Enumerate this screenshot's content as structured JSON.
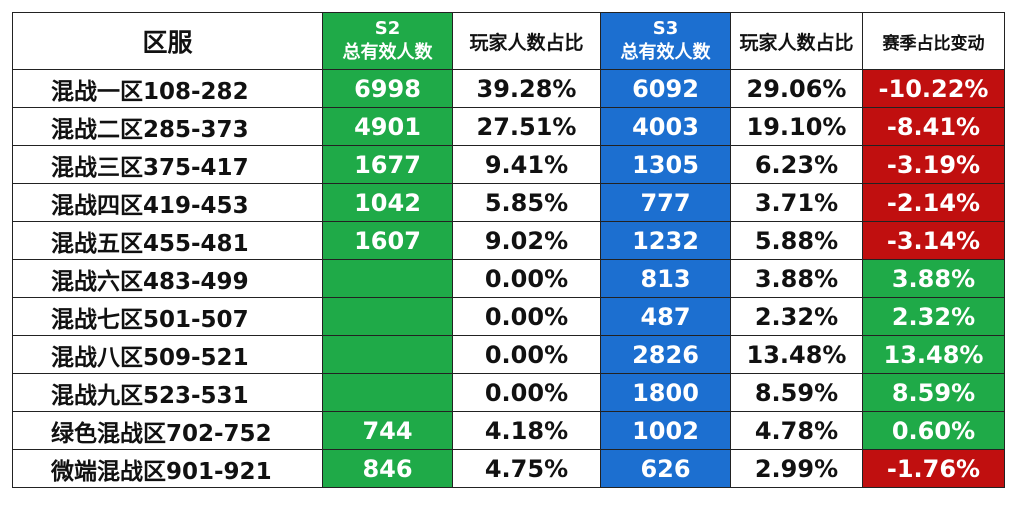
{
  "headers": {
    "region": "区服",
    "s2_line1": "S2",
    "s2_line2": "总有效人数",
    "s2_ratio": "玩家人数占比",
    "s3_line1": "S3",
    "s3_line2": "总有效人数",
    "s3_ratio": "玩家人数占比",
    "change": "赛季占比变动"
  },
  "rows": [
    {
      "region": "混战一区108-282",
      "s2_count": "6998",
      "s2_ratio": "39.28%",
      "s3_count": "6092",
      "s3_ratio": "29.06%",
      "change": "-10.22%",
      "change_sign": "neg"
    },
    {
      "region": "混战二区285-373",
      "s2_count": "4901",
      "s2_ratio": "27.51%",
      "s3_count": "4003",
      "s3_ratio": "19.10%",
      "change": "-8.41%",
      "change_sign": "neg"
    },
    {
      "region": "混战三区375-417",
      "s2_count": "1677",
      "s2_ratio": "9.41%",
      "s3_count": "1305",
      "s3_ratio": "6.23%",
      "change": "-3.19%",
      "change_sign": "neg"
    },
    {
      "region": "混战四区419-453",
      "s2_count": "1042",
      "s2_ratio": "5.85%",
      "s3_count": "777",
      "s3_ratio": "3.71%",
      "change": "-2.14%",
      "change_sign": "neg"
    },
    {
      "region": "混战五区455-481",
      "s2_count": "1607",
      "s2_ratio": "9.02%",
      "s3_count": "1232",
      "s3_ratio": "5.88%",
      "change": "-3.14%",
      "change_sign": "neg"
    },
    {
      "region": "混战六区483-499",
      "s2_count": "",
      "s2_ratio": "0.00%",
      "s3_count": "813",
      "s3_ratio": "3.88%",
      "change": "3.88%",
      "change_sign": "pos"
    },
    {
      "region": "混战七区501-507",
      "s2_count": "",
      "s2_ratio": "0.00%",
      "s3_count": "487",
      "s3_ratio": "2.32%",
      "change": "2.32%",
      "change_sign": "pos"
    },
    {
      "region": "混战八区509-521",
      "s2_count": "",
      "s2_ratio": "0.00%",
      "s3_count": "2826",
      "s3_ratio": "13.48%",
      "change": "13.48%",
      "change_sign": "pos"
    },
    {
      "region": "混战九区523-531",
      "s2_count": "",
      "s2_ratio": "0.00%",
      "s3_count": "1800",
      "s3_ratio": "8.59%",
      "change": "8.59%",
      "change_sign": "pos"
    },
    {
      "region": "绿色混战区702-752",
      "s2_count": "744",
      "s2_ratio": "4.18%",
      "s3_count": "1002",
      "s3_ratio": "4.78%",
      "change": "0.60%",
      "change_sign": "pos"
    },
    {
      "region": "微端混战区901-921",
      "s2_count": "846",
      "s2_ratio": "4.75%",
      "s3_count": "626",
      "s3_ratio": "2.99%",
      "change": "-1.76%",
      "change_sign": "neg"
    }
  ],
  "colors": {
    "s2_column": "#1faa48",
    "s3_column": "#1c6fd0",
    "positive_change": "#1faa48",
    "negative_change": "#c00f0f"
  }
}
